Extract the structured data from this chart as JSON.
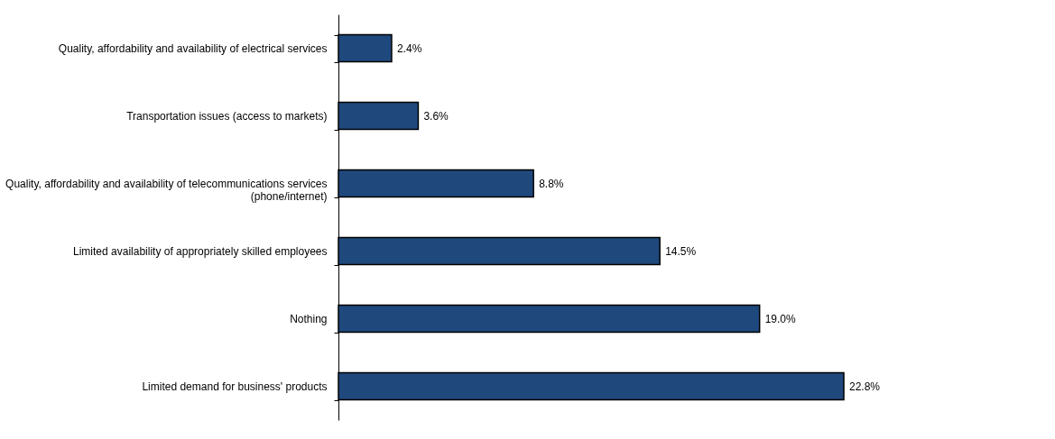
{
  "chart_data": {
    "type": "bar",
    "orientation": "horizontal",
    "data_labels": true,
    "grid": false,
    "categories": [
      "Quality, affordability and availability of electrical services",
      "Transportation issues (access to markets)",
      "Quality, affordability and availability of telecommunications services (phone/internet)",
      "Limited availability of appropriately skilled employees",
      "Nothing",
      "Limited demand for business' products"
    ],
    "values": [
      2.4,
      3.6,
      8.8,
      14.5,
      19.0,
      22.8
    ],
    "value_labels": [
      "2.4%",
      "3.6%",
      "8.8%",
      "14.5%",
      "19.0%",
      "22.8%"
    ],
    "color": "#1f497d"
  }
}
